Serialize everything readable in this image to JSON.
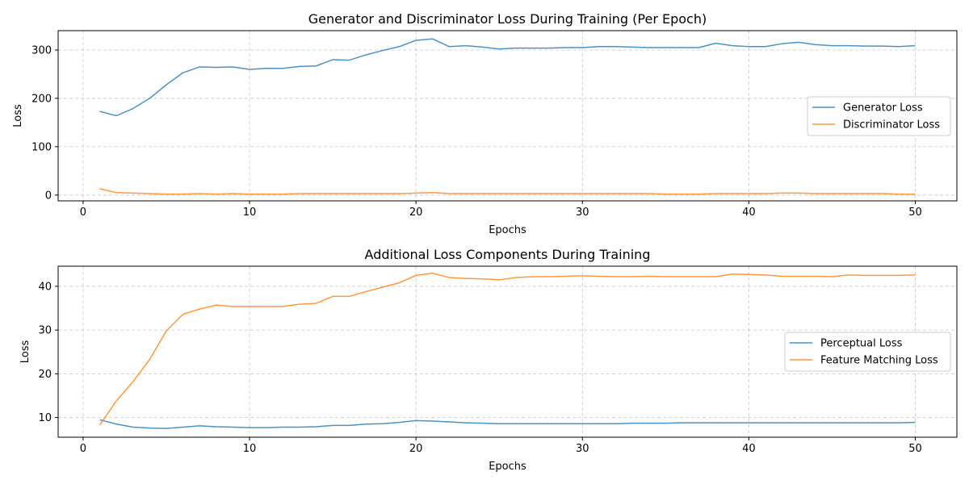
{
  "chart_data": [
    {
      "type": "line",
      "title": "Generator and Discriminator Loss During Training (Per Epoch)",
      "xlabel": "Epochs",
      "ylabel": "Loss",
      "xlim": [
        -1.5,
        52.5
      ],
      "ylim": [
        -12,
        340
      ],
      "xticks": [
        0,
        10,
        20,
        30,
        40,
        50
      ],
      "yticks": [
        0,
        100,
        200,
        300
      ],
      "grid": true,
      "legend_position": "center-right",
      "x": [
        1,
        2,
        3,
        4,
        5,
        6,
        7,
        8,
        9,
        10,
        11,
        12,
        13,
        14,
        15,
        16,
        17,
        18,
        19,
        20,
        21,
        22,
        23,
        24,
        25,
        26,
        27,
        28,
        29,
        30,
        31,
        32,
        33,
        34,
        35,
        36,
        37,
        38,
        39,
        40,
        41,
        42,
        43,
        44,
        45,
        46,
        47,
        48,
        49,
        50
      ],
      "series": [
        {
          "name": "Generator Loss",
          "color": "#1f77b4",
          "values": [
            173,
            164,
            179,
            200,
            228,
            253,
            265,
            264,
            265,
            260,
            262,
            262,
            266,
            267,
            280,
            279,
            290,
            299,
            307,
            320,
            323,
            307,
            309,
            306,
            302,
            304,
            304,
            304,
            305,
            305,
            307,
            307,
            306,
            305,
            305,
            305,
            305,
            314,
            309,
            307,
            307,
            313,
            316,
            311,
            309,
            309,
            308,
            308,
            307,
            309
          ]
        },
        {
          "name": "Discriminator Loss",
          "color": "#ff7f0e",
          "values": [
            13,
            5,
            4,
            3,
            2,
            2,
            3,
            2,
            3,
            2,
            2,
            2,
            3,
            3,
            3,
            3,
            3,
            3,
            3,
            4,
            5,
            3,
            3,
            3,
            3,
            3,
            3,
            3,
            3,
            3,
            3,
            3,
            3,
            3,
            2,
            2,
            2,
            3,
            3,
            3,
            3,
            4,
            4,
            3,
            3,
            3,
            3,
            3,
            2,
            2
          ]
        }
      ]
    },
    {
      "type": "line",
      "title": "Additional Loss Components During Training",
      "xlabel": "Epochs",
      "ylabel": "Loss",
      "xlim": [
        -1.5,
        52.5
      ],
      "ylim": [
        5.5,
        44.6
      ],
      "xticks": [
        0,
        10,
        20,
        30,
        40,
        50
      ],
      "yticks": [
        10,
        20,
        30,
        40
      ],
      "grid": true,
      "legend_position": "center-right",
      "x": [
        1,
        2,
        3,
        4,
        5,
        6,
        7,
        8,
        9,
        10,
        11,
        12,
        13,
        14,
        15,
        16,
        17,
        18,
        19,
        20,
        21,
        22,
        23,
        24,
        25,
        26,
        27,
        28,
        29,
        30,
        31,
        32,
        33,
        34,
        35,
        36,
        37,
        38,
        39,
        40,
        41,
        42,
        43,
        44,
        45,
        46,
        47,
        48,
        49,
        50
      ],
      "series": [
        {
          "name": "Perceptual Loss",
          "color": "#1f77b4",
          "values": [
            9.5,
            8.5,
            7.8,
            7.6,
            7.5,
            7.8,
            8.1,
            7.9,
            7.8,
            7.7,
            7.7,
            7.8,
            7.8,
            7.9,
            8.2,
            8.2,
            8.5,
            8.6,
            8.9,
            9.3,
            9.2,
            9.0,
            8.8,
            8.7,
            8.6,
            8.6,
            8.6,
            8.6,
            8.6,
            8.6,
            8.6,
            8.6,
            8.7,
            8.7,
            8.7,
            8.8,
            8.8,
            8.8,
            8.8,
            8.8,
            8.8,
            8.8,
            8.8,
            8.8,
            8.8,
            8.8,
            8.8,
            8.8,
            8.8,
            8.9
          ]
        },
        {
          "name": "Feature Matching Loss",
          "color": "#ff7f0e",
          "values": [
            8.3,
            13.8,
            18.2,
            23.3,
            29.8,
            33.6,
            34.8,
            35.7,
            35.4,
            35.4,
            35.4,
            35.4,
            35.9,
            36.1,
            37.7,
            37.7,
            38.8,
            39.8,
            40.8,
            42.5,
            43.0,
            42.0,
            41.8,
            41.7,
            41.5,
            42.0,
            42.2,
            42.2,
            42.3,
            42.4,
            42.3,
            42.2,
            42.2,
            42.3,
            42.2,
            42.2,
            42.2,
            42.2,
            42.8,
            42.7,
            42.6,
            42.3,
            42.3,
            42.3,
            42.2,
            42.6,
            42.5,
            42.5,
            42.5,
            42.6
          ]
        }
      ]
    }
  ]
}
